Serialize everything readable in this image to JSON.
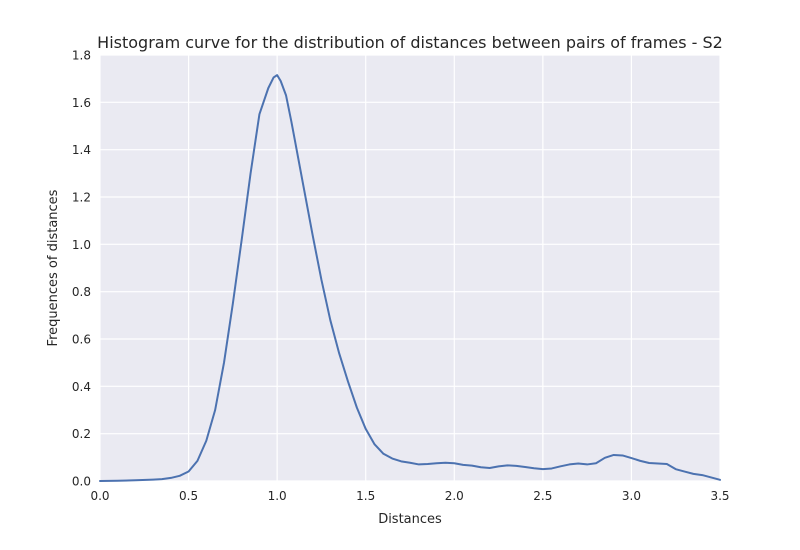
{
  "chart_data": {
    "type": "line",
    "title": "Histogram curve for the distribution of distances between pairs of frames - S2",
    "xlabel": "Distances",
    "ylabel": "Frequences of distances",
    "xlim": [
      0.0,
      3.5
    ],
    "ylim": [
      0.0,
      1.8
    ],
    "xticks": [
      "0.0",
      "0.5",
      "1.0",
      "1.5",
      "2.0",
      "2.5",
      "3.0",
      "3.5"
    ],
    "yticks": [
      "0.0",
      "0.2",
      "0.4",
      "0.6",
      "0.8",
      "1.0",
      "1.2",
      "1.4",
      "1.6",
      "1.8"
    ],
    "grid": true,
    "background": "#eaeaf2",
    "line_color": "#4c72b0",
    "series": [
      {
        "x": [
          0.0,
          0.1,
          0.2,
          0.3,
          0.35,
          0.4,
          0.45,
          0.5,
          0.55,
          0.6,
          0.65,
          0.7,
          0.75,
          0.8,
          0.85,
          0.9,
          0.95,
          0.98,
          1.0,
          1.02,
          1.05,
          1.08,
          1.1,
          1.15,
          1.2,
          1.25,
          1.3,
          1.35,
          1.4,
          1.45,
          1.5,
          1.55,
          1.6,
          1.65,
          1.7,
          1.75,
          1.8,
          1.85,
          1.9,
          1.95,
          2.0,
          2.05,
          2.1,
          2.15,
          2.2,
          2.25,
          2.3,
          2.35,
          2.4,
          2.45,
          2.5,
          2.55,
          2.6,
          2.65,
          2.7,
          2.75,
          2.8,
          2.85,
          2.9,
          2.95,
          3.0,
          3.05,
          3.1,
          3.15,
          3.2,
          3.25,
          3.3,
          3.35,
          3.4,
          3.45,
          3.5
        ],
        "values": [
          0.0,
          0.001,
          0.003,
          0.006,
          0.008,
          0.013,
          0.022,
          0.04,
          0.085,
          0.17,
          0.3,
          0.5,
          0.75,
          1.02,
          1.3,
          1.55,
          1.66,
          1.705,
          1.715,
          1.69,
          1.63,
          1.52,
          1.44,
          1.24,
          1.04,
          0.85,
          0.68,
          0.54,
          0.42,
          0.31,
          0.22,
          0.155,
          0.115,
          0.095,
          0.083,
          0.077,
          0.07,
          0.072,
          0.075,
          0.077,
          0.075,
          0.068,
          0.065,
          0.058,
          0.055,
          0.062,
          0.066,
          0.064,
          0.059,
          0.054,
          0.05,
          0.053,
          0.062,
          0.07,
          0.074,
          0.07,
          0.075,
          0.098,
          0.11,
          0.108,
          0.097,
          0.085,
          0.076,
          0.074,
          0.072,
          0.05,
          0.04,
          0.03,
          0.025,
          0.015,
          0.005
        ]
      }
    ]
  }
}
